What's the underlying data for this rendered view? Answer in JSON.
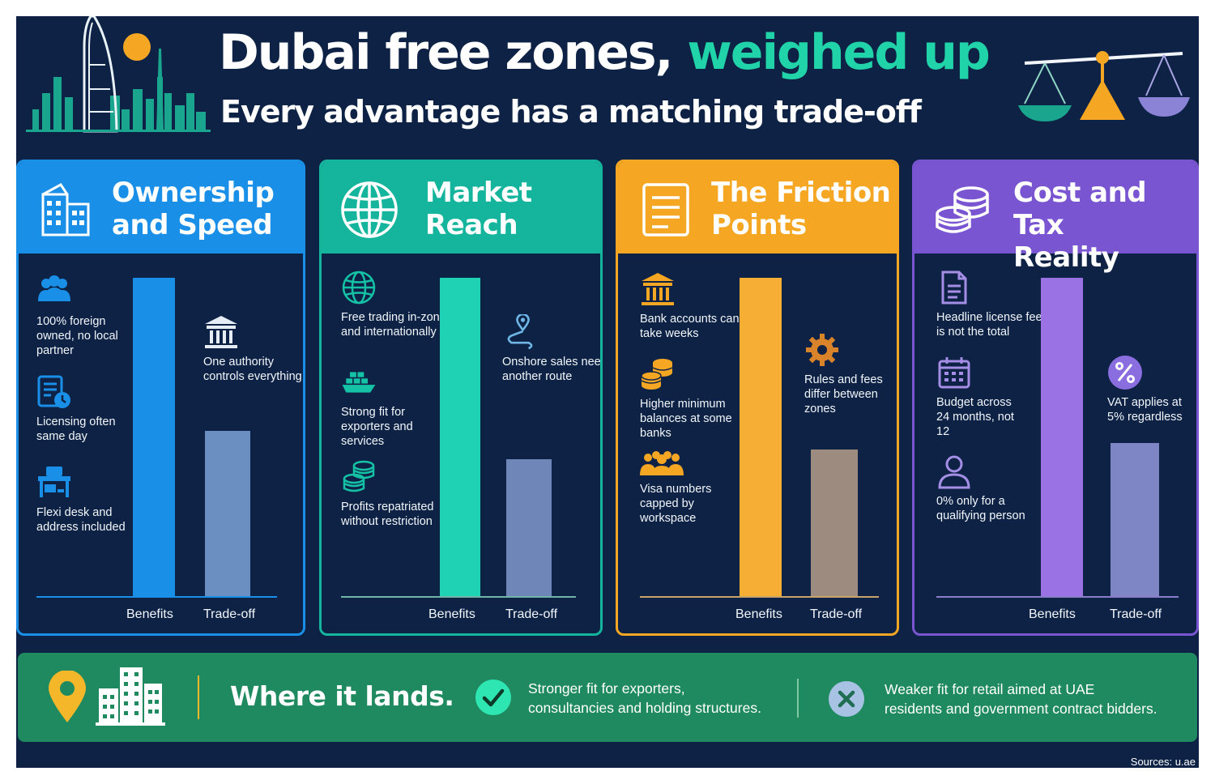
{
  "header": {
    "title_main": "Dubai free zones,",
    "title_accent": "weighed up",
    "subtitle": "Every advantage has a matching trade-off",
    "skyline_icon": "dubai-skyline-icon",
    "scale_icon": "balance-scale-icon"
  },
  "colors": {
    "background": "#0d2244",
    "accent": "#21d3a8",
    "panel1": "#1a8fe8",
    "panel2": "#15b49c",
    "panel3": "#f5a623",
    "panel4": "#7a55d1",
    "footer": "#1f8a5f"
  },
  "axis": {
    "benefits": "Benefits",
    "tradeoff": "Trade-off"
  },
  "panels": [
    {
      "title_line1": "Ownership",
      "title_line2": "and Speed",
      "icon": "office-building-icon",
      "benefits_level": 1.0,
      "tradeoff_level": 0.52,
      "benefits": [
        {
          "icon": "people-group-icon",
          "text": "100% foreign owned, no local partner"
        },
        {
          "icon": "license-clock-icon",
          "text": "Licensing often same day"
        },
        {
          "icon": "office-desk-icon",
          "text": "Flexi desk and address included"
        }
      ],
      "tradeoffs": [
        {
          "icon": "government-building-icon",
          "text": "One authority controls everything"
        }
      ]
    },
    {
      "title_line1": "Market",
      "title_line2": "Reach",
      "icon": "globe-icon",
      "benefits_level": 1.0,
      "tradeoff_level": 0.43,
      "benefits": [
        {
          "icon": "globe-icon",
          "text": "Free trading in-zone and internationally"
        },
        {
          "icon": "cargo-ship-icon",
          "text": "Strong fit for exporters and services"
        },
        {
          "icon": "coin-stack-icon",
          "text": "Profits repatriated without restriction"
        }
      ],
      "tradeoffs": [
        {
          "icon": "route-pin-icon",
          "text": "Onshore sales need another route"
        }
      ]
    },
    {
      "title_line1": "The Friction",
      "title_line2": "Points",
      "icon": "document-icon",
      "benefits_level": 1.0,
      "tradeoff_level": 0.46,
      "benefits": [
        {
          "icon": "bank-icon",
          "text": "Bank accounts can take weeks"
        },
        {
          "icon": "coin-stack-icon",
          "text": "Higher minimum balances at some banks"
        },
        {
          "icon": "people-group-icon",
          "text": "Visa numbers capped by workspace"
        }
      ],
      "tradeoffs": [
        {
          "icon": "gear-icon",
          "text": "Rules and fees differ between zones"
        }
      ]
    },
    {
      "title_line1": "Cost and Tax",
      "title_line2": "Reality",
      "icon": "coin-stack-icon",
      "benefits_level": 1.0,
      "tradeoff_level": 0.48,
      "benefits": [
        {
          "icon": "document-icon",
          "text": "Headline license fee is not the total"
        },
        {
          "icon": "calendar-icon",
          "text": "Budget across 24 months, not 12"
        },
        {
          "icon": "person-icon",
          "text": "0% only for a qualifying person"
        }
      ],
      "tradeoffs": [
        {
          "icon": "percent-icon",
          "text": "VAT applies at 5% regardless"
        }
      ]
    }
  ],
  "footer": {
    "label": "Where it lands.",
    "pin_icon": "location-pin-icon",
    "building_icon": "tower-building-icon",
    "positive_icon": "check-circle-icon",
    "positive_text_line1": "Stronger fit for exporters,",
    "positive_text_line2": "consultancies and holding structures.",
    "negative_icon": "x-circle-icon",
    "negative_text_line1": "Weaker fit for retail aimed at UAE",
    "negative_text_line2": "residents and government contract bidders."
  },
  "sources": "Sources: u.ae"
}
